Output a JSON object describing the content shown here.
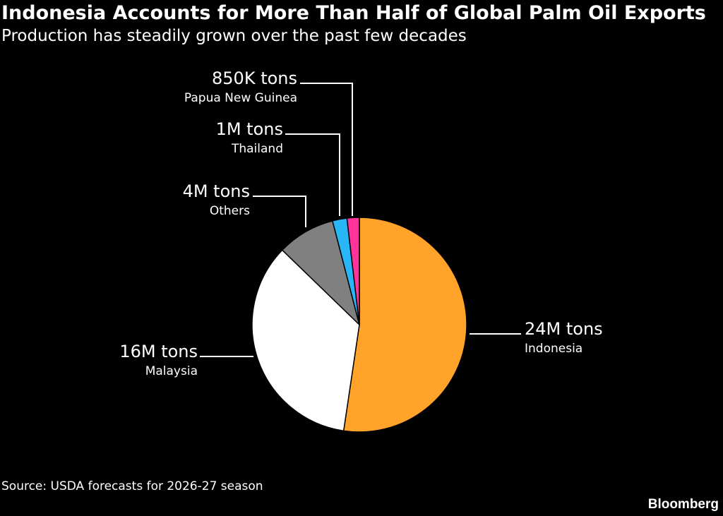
{
  "title": "Indonesia Accounts for More Than Half of Global Palm Oil Exports",
  "subtitle": "Production has steadily grown over the past few decades",
  "source": "Source: USDA forecasts for 2026-27 season",
  "brand": "Bloomberg",
  "chart_data": {
    "type": "pie",
    "slices": [
      {
        "name": "Indonesia",
        "label": "24M tons",
        "value": 24000000,
        "color": "#FFA32B"
      },
      {
        "name": "Malaysia",
        "label": "16M tons",
        "value": 16000000,
        "color": "#FFFFFF"
      },
      {
        "name": "Others",
        "label": "4M tons",
        "value": 4000000,
        "color": "#808080"
      },
      {
        "name": "Thailand",
        "label": "1M tons",
        "value": 1000000,
        "color": "#29B6F6"
      },
      {
        "name": "Papua New Guinea",
        "label": "850K tons",
        "value": 850000,
        "color": "#FF3399"
      }
    ]
  }
}
